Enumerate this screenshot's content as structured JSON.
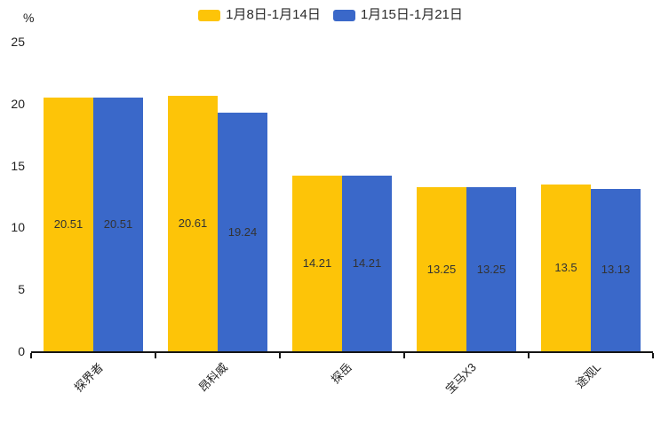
{
  "chart_data": {
    "type": "bar",
    "title": "",
    "categories": [
      "探界者",
      "昂科威",
      "探岳",
      "宝马X3",
      "途观L"
    ],
    "series": [
      {
        "name": "1月8日-1月14日",
        "color": "#FDC408",
        "values": [
          20.51,
          20.61,
          14.21,
          13.25,
          13.5
        ]
      },
      {
        "name": "1月15日-1月21日",
        "color": "#3A68C9",
        "values": [
          20.51,
          19.24,
          14.21,
          13.25,
          13.13
        ]
      }
    ],
    "xlabel": "",
    "ylabel": "%",
    "ylim": [
      0,
      25
    ],
    "yticks": [
      0,
      5,
      10,
      15,
      20,
      25
    ],
    "legend_position": "top-center",
    "grid": false,
    "value_labels": "inside-center",
    "value_label_color": "#333333",
    "axis_color": "#151515"
  }
}
